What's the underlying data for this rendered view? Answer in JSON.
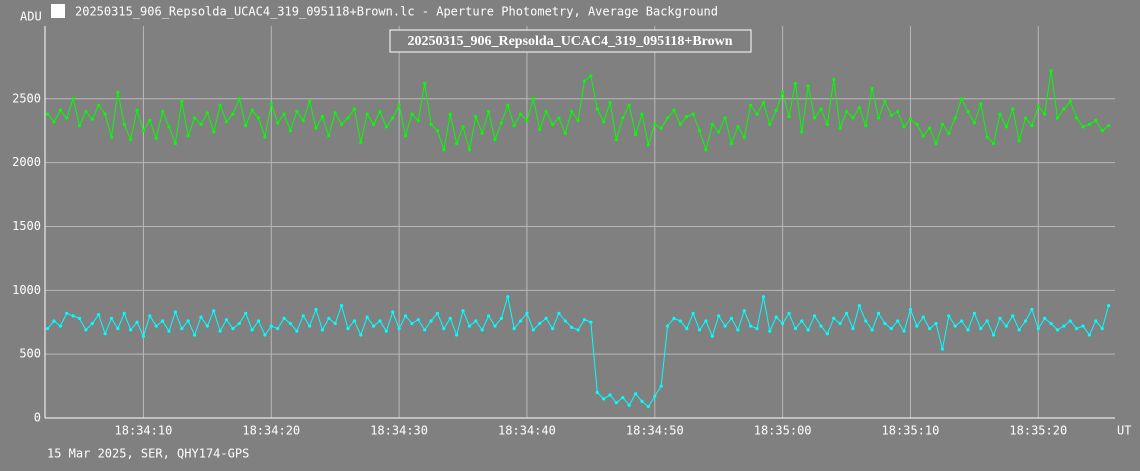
{
  "window_title": "20250315_906_Repsolda_UCAC4_319_095118+Brown.lc - Aperture Photometry, Average Background",
  "chart_data": {
    "type": "line",
    "title": "20250315_906_Repsolda_UCAC4_319_095118+Brown",
    "y_label": "ADU",
    "x_label": "UT",
    "footer": "15 Mar 2025, SER, QHY174-GPS",
    "grid": true,
    "xlim": [
      2.3,
      86
    ],
    "ylim": [
      0,
      3070
    ],
    "xticks": [
      {
        "value": 10,
        "label": "18:34:10"
      },
      {
        "value": 20,
        "label": "18:34:20"
      },
      {
        "value": 30,
        "label": "18:34:30"
      },
      {
        "value": 40,
        "label": "18:34:40"
      },
      {
        "value": 50,
        "label": "18:34:50"
      },
      {
        "value": 60,
        "label": "18:35:00"
      },
      {
        "value": 70,
        "label": "18:35:10"
      },
      {
        "value": 80,
        "label": "18:35:20"
      }
    ],
    "yticks": [
      0,
      500,
      1000,
      1500,
      2000,
      2500
    ],
    "x": [
      2.5,
      3,
      3.5,
      4,
      4.5,
      5,
      5.5,
      6,
      6.5,
      7,
      7.5,
      8,
      8.5,
      9,
      9.5,
      10,
      10.5,
      11,
      11.5,
      12,
      12.5,
      13,
      13.5,
      14,
      14.5,
      15,
      15.5,
      16,
      16.5,
      17,
      17.5,
      18,
      18.5,
      19,
      19.5,
      20,
      20.5,
      21,
      21.5,
      22,
      22.5,
      23,
      23.5,
      24,
      24.5,
      25,
      25.5,
      26,
      26.5,
      27,
      27.5,
      28,
      28.5,
      29,
      29.5,
      30,
      30.5,
      31,
      31.5,
      32,
      32.5,
      33,
      33.5,
      34,
      34.5,
      35,
      35.5,
      36,
      36.5,
      37,
      37.5,
      38,
      38.5,
      39,
      39.5,
      40,
      40.5,
      41,
      41.5,
      42,
      42.5,
      43,
      43.5,
      44,
      44.5,
      45,
      45.5,
      46,
      46.5,
      47,
      47.5,
      48,
      48.5,
      49,
      49.5,
      50,
      50.5,
      51,
      51.5,
      52,
      52.5,
      53,
      53.5,
      54,
      54.5,
      55,
      55.5,
      56,
      56.5,
      57,
      57.5,
      58,
      58.5,
      59,
      59.5,
      60,
      60.5,
      61,
      61.5,
      62,
      62.5,
      63,
      63.5,
      64,
      64.5,
      65,
      65.5,
      66,
      66.5,
      67,
      67.5,
      68,
      68.5,
      69,
      69.5,
      70,
      70.5,
      71,
      71.5,
      72,
      72.5,
      73,
      73.5,
      74,
      74.5,
      75,
      75.5,
      76,
      76.5,
      77,
      77.5,
      78,
      78.5,
      79,
      79.5,
      80,
      80.5,
      81,
      81.5,
      82,
      82.5,
      83,
      83.5,
      84,
      84.5,
      85,
      85.5
    ],
    "series": [
      {
        "color": "#00ff00",
        "values": [
          2380,
          2320,
          2410,
          2350,
          2500,
          2290,
          2400,
          2340,
          2450,
          2380,
          2200,
          2550,
          2300,
          2180,
          2410,
          2250,
          2330,
          2190,
          2400,
          2280,
          2150,
          2480,
          2210,
          2350,
          2300,
          2390,
          2240,
          2450,
          2320,
          2380,
          2500,
          2290,
          2410,
          2350,
          2200,
          2460,
          2310,
          2380,
          2250,
          2400,
          2330,
          2480,
          2270,
          2360,
          2210,
          2390,
          2300,
          2350,
          2420,
          2160,
          2380,
          2300,
          2400,
          2280,
          2350,
          2450,
          2210,
          2380,
          2330,
          2620,
          2300,
          2250,
          2100,
          2380,
          2150,
          2280,
          2100,
          2360,
          2230,
          2400,
          2180,
          2310,
          2450,
          2290,
          2380,
          2330,
          2500,
          2260,
          2400,
          2300,
          2350,
          2230,
          2400,
          2330,
          2640,
          2680,
          2420,
          2320,
          2470,
          2180,
          2350,
          2450,
          2220,
          2380,
          2140,
          2300,
          2270,
          2350,
          2410,
          2300,
          2360,
          2380,
          2250,
          2100,
          2300,
          2240,
          2350,
          2150,
          2280,
          2200,
          2450,
          2380,
          2470,
          2300,
          2410,
          2550,
          2360,
          2620,
          2240,
          2600,
          2350,
          2420,
          2300,
          2650,
          2270,
          2400,
          2350,
          2430,
          2290,
          2580,
          2350,
          2480,
          2370,
          2400,
          2280,
          2340,
          2300,
          2210,
          2270,
          2150,
          2300,
          2230,
          2350,
          2500,
          2400,
          2310,
          2460,
          2200,
          2150,
          2380,
          2280,
          2420,
          2170,
          2350,
          2290,
          2440,
          2380,
          2720,
          2350,
          2420,
          2480,
          2350,
          2280,
          2300,
          2330,
          2250,
          2290
        ]
      },
      {
        "color": "#00ffff",
        "values": [
          700,
          760,
          720,
          820,
          800,
          780,
          690,
          740,
          810,
          660,
          780,
          700,
          820,
          690,
          750,
          640,
          800,
          720,
          760,
          680,
          830,
          700,
          760,
          650,
          790,
          720,
          840,
          680,
          770,
          700,
          740,
          820,
          690,
          760,
          650,
          720,
          700,
          780,
          740,
          680,
          800,
          720,
          850,
          690,
          780,
          740,
          880,
          700,
          760,
          650,
          790,
          720,
          760,
          680,
          830,
          700,
          800,
          740,
          770,
          690,
          760,
          820,
          700,
          780,
          650,
          840,
          720,
          760,
          690,
          800,
          720,
          780,
          950,
          700,
          760,
          820,
          690,
          740,
          780,
          700,
          820,
          760,
          710,
          690,
          770,
          750,
          200,
          150,
          180,
          120,
          160,
          100,
          190,
          130,
          90,
          170,
          250,
          720,
          780,
          760,
          700,
          820,
          690,
          760,
          640,
          800,
          720,
          780,
          690,
          840,
          720,
          700,
          950,
          680,
          790,
          740,
          820,
          700,
          760,
          690,
          800,
          720,
          660,
          780,
          740,
          820,
          700,
          880,
          760,
          690,
          820,
          740,
          700,
          760,
          680,
          850,
          720,
          790,
          700,
          740,
          540,
          800,
          720,
          760,
          690,
          820,
          700,
          760,
          650,
          780,
          720,
          800,
          690,
          760,
          850,
          700,
          780,
          740,
          690,
          720,
          760,
          700,
          720,
          650,
          760,
          700,
          880
        ]
      }
    ]
  }
}
